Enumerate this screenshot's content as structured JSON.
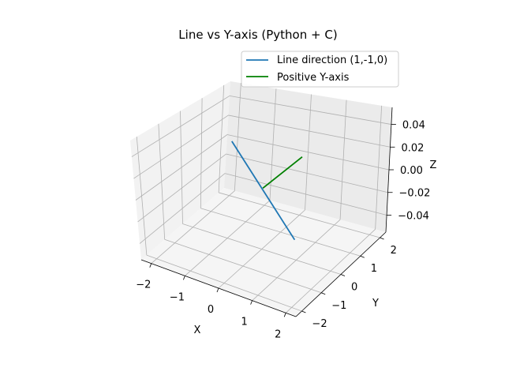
{
  "chart_data": {
    "type": "line",
    "projection": "3d",
    "title": "Line vs Y-axis (Python + C)",
    "xlabel": "X",
    "ylabel": "Y",
    "zlabel": "Z",
    "xlim": [
      -2.3,
      2.3
    ],
    "ylim": [
      -2.3,
      2.3
    ],
    "zlim": [
      -0.055,
      0.055
    ],
    "x_ticks": [
      "−2",
      "−1",
      "0",
      "1",
      "2"
    ],
    "y_ticks": [
      "−2",
      "−1",
      "0",
      "1",
      "2"
    ],
    "z_ticks": [
      "−0.04",
      "−0.02",
      "0.00",
      "0.02",
      "0.04"
    ],
    "grid": true,
    "legend_position": "top-right",
    "series": [
      {
        "name": "Line direction (1,-1,0)",
        "color": "#1f77b4",
        "points": [
          [
            -2,
            2,
            0
          ],
          [
            2,
            -2,
            0
          ]
        ]
      },
      {
        "name": "Positive Y-axis",
        "color": "#008000",
        "points": [
          [
            0,
            0,
            0
          ],
          [
            0,
            2,
            0
          ]
        ]
      }
    ]
  }
}
